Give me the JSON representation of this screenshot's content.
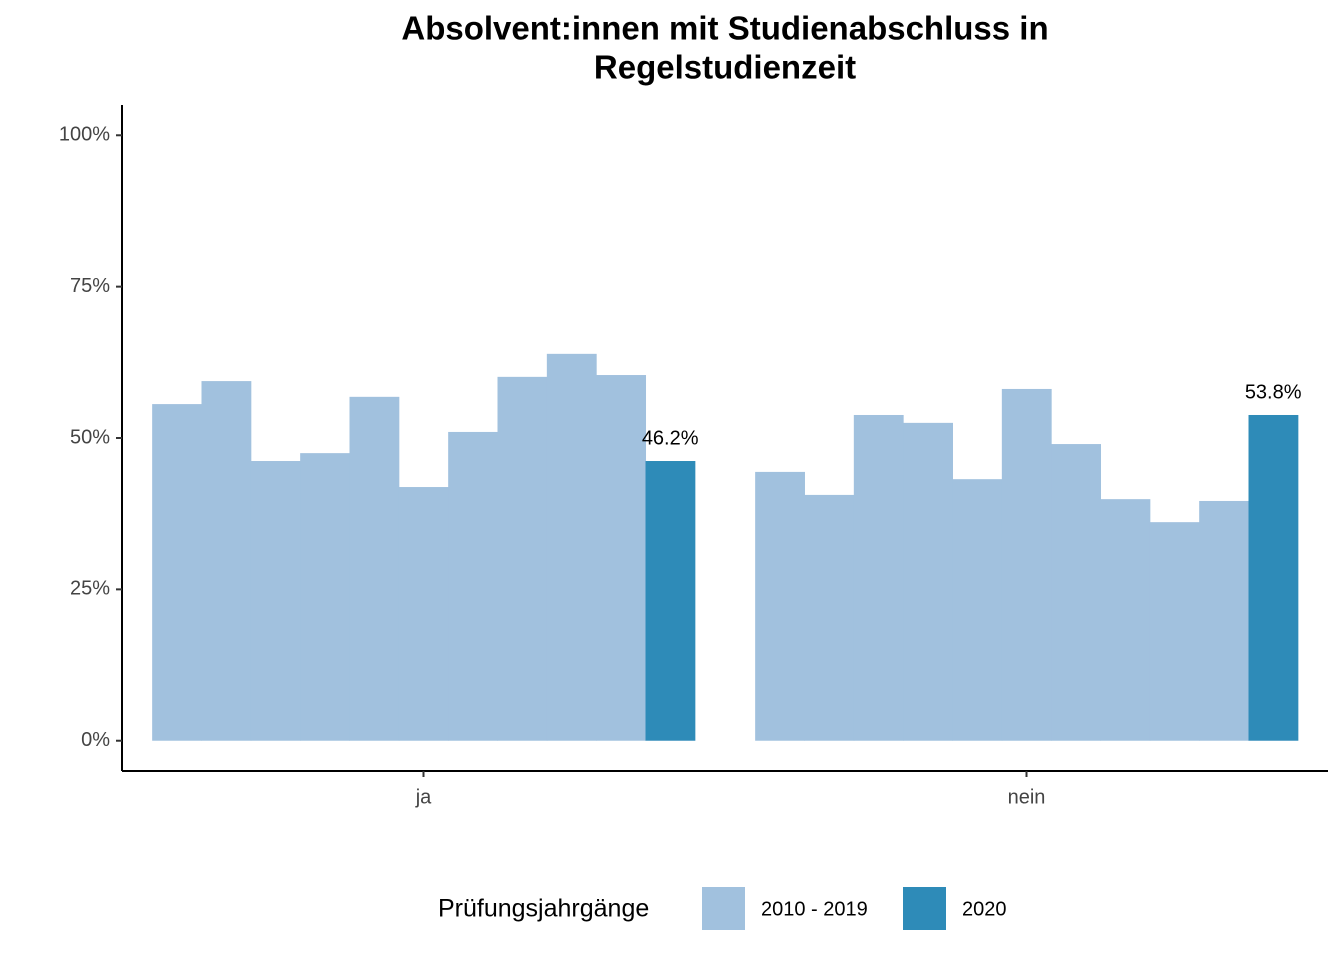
{
  "chart_data": {
    "type": "bar",
    "title": [
      "Absolvent:innen mit Studienabschluss in",
      "Regelstudienzeit"
    ],
    "categories": [
      "ja",
      "nein"
    ],
    "series": [
      {
        "name": "2010 - 2019",
        "color": "#a1c1de",
        "values": [
          [
            55.6,
            59.4,
            46.2,
            47.5,
            56.8,
            41.9,
            51.0,
            60.1,
            63.9,
            60.4
          ],
          [
            44.4,
            40.6,
            53.8,
            52.5,
            43.2,
            58.1,
            49.0,
            39.9,
            36.1,
            39.6
          ]
        ]
      },
      {
        "name": "2020",
        "color": "#2e8bb8",
        "values": [
          46.2,
          53.8
        ],
        "value_labels": [
          "46.2%",
          "53.8%"
        ]
      }
    ],
    "ylim": [
      -5,
      105
    ],
    "yticks": [
      {
        "value": 0,
        "label": "0%"
      },
      {
        "value": 25,
        "label": "25%"
      },
      {
        "value": 50,
        "label": "50%"
      },
      {
        "value": 75,
        "label": "75%"
      },
      {
        "value": 100,
        "label": "100%"
      }
    ],
    "grid": false,
    "legend_title": "Prüfungsjahrgänge",
    "legend_position": "bottom"
  }
}
